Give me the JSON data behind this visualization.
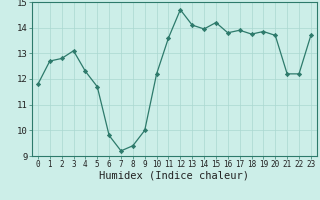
{
  "x": [
    0,
    1,
    2,
    3,
    4,
    5,
    6,
    7,
    8,
    9,
    10,
    11,
    12,
    13,
    14,
    15,
    16,
    17,
    18,
    19,
    20,
    21,
    22,
    23
  ],
  "y": [
    11.8,
    12.7,
    12.8,
    13.1,
    12.3,
    11.7,
    9.8,
    9.2,
    9.4,
    10.0,
    12.2,
    13.6,
    14.7,
    14.1,
    13.95,
    14.2,
    13.8,
    13.9,
    13.75,
    13.85,
    13.7,
    12.2,
    12.2,
    13.7
  ],
  "xlabel": "Humidex (Indice chaleur)",
  "xlim": [
    -0.5,
    23.5
  ],
  "ylim": [
    9,
    15
  ],
  "yticks": [
    9,
    10,
    11,
    12,
    13,
    14,
    15
  ],
  "xticks": [
    0,
    1,
    2,
    3,
    4,
    5,
    6,
    7,
    8,
    9,
    10,
    11,
    12,
    13,
    14,
    15,
    16,
    17,
    18,
    19,
    20,
    21,
    22,
    23
  ],
  "line_color": "#2d7a6b",
  "marker_color": "#2d7a6b",
  "bg_plot": "#cceee8",
  "bg_fig": "#cceee8",
  "grid_color": "#aad8d0",
  "tick_label_color": "#222222",
  "xlabel_fontsize": 7.5,
  "ytick_fontsize": 6.5,
  "xtick_fontsize": 5.5
}
